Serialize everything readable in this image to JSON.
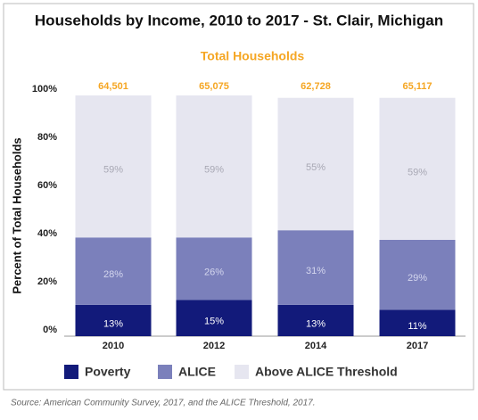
{
  "chart_data": {
    "type": "stacked_bar",
    "title": "Households by Income, 2010 to 2017 - St. Clair, Michigan",
    "subtitle": "Total Households",
    "y_label": "Percent of Total Households",
    "categories": [
      "2010",
      "2012",
      "2014",
      "2017"
    ],
    "totals": {
      "values": [
        64501,
        65075,
        62728,
        65117
      ],
      "value_labels": [
        "64,501",
        "65,075",
        "62,728",
        "65,117"
      ],
      "color": "#f5a623"
    },
    "series": [
      {
        "name": "Poverty",
        "color": "#121a7a",
        "values": [
          13,
          15,
          13,
          11
        ],
        "value_labels": [
          "13%",
          "15%",
          "13%",
          "11%"
        ]
      },
      {
        "name": "ALICE",
        "color": "#7b80bb",
        "values": [
          28,
          26,
          31,
          29
        ],
        "value_labels": [
          "28%",
          "26%",
          "31%",
          "29%"
        ]
      },
      {
        "name": "Above ALICE Threshold",
        "color": "#e6e6f0",
        "values": [
          59,
          59,
          55,
          59
        ],
        "value_labels": [
          "59%",
          "59%",
          "55%",
          "59%"
        ]
      }
    ],
    "ylim": [
      0,
      100
    ],
    "yticks": [
      {
        "value": 0,
        "label": "0%"
      },
      {
        "value": 20,
        "label": "20%"
      },
      {
        "value": 40,
        "label": "40%"
      },
      {
        "value": 60,
        "label": "60%"
      },
      {
        "value": 80,
        "label": "80%"
      },
      {
        "value": 100,
        "label": "100%"
      }
    ],
    "source": "Source: American Community Survey, 2017, and the ALICE Threshold, 2017."
  }
}
